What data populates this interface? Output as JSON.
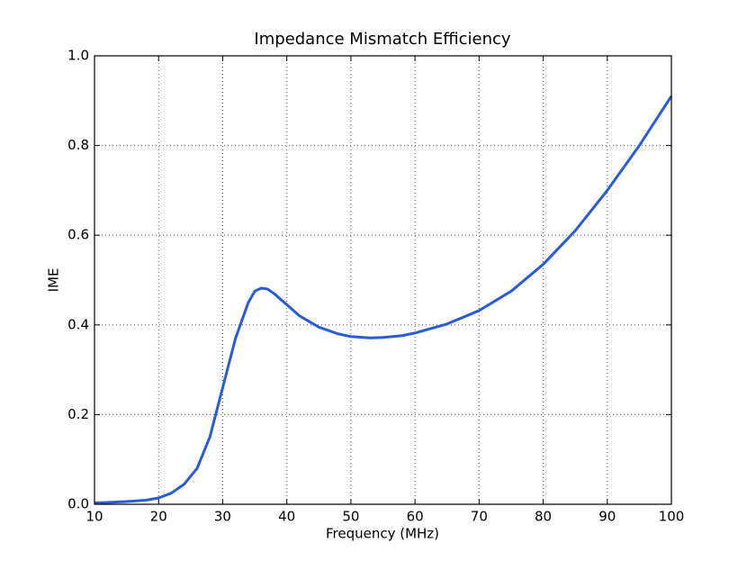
{
  "chart_data": {
    "type": "line",
    "title": "Impedance Mismatch Efficiency",
    "x_label": "Frequency (MHz)",
    "y_label": "IME",
    "x": [
      10,
      12,
      15,
      18,
      20,
      22,
      24,
      26,
      28,
      30,
      32,
      34,
      35,
      36,
      37,
      38,
      40,
      42,
      45,
      48,
      50,
      53,
      55,
      58,
      60,
      65,
      70,
      75,
      80,
      85,
      90,
      95,
      100
    ],
    "values": [
      0.003,
      0.004,
      0.006,
      0.009,
      0.014,
      0.025,
      0.045,
      0.08,
      0.15,
      0.26,
      0.37,
      0.45,
      0.475,
      0.482,
      0.48,
      0.47,
      0.445,
      0.42,
      0.395,
      0.38,
      0.374,
      0.371,
      0.372,
      0.376,
      0.382,
      0.402,
      0.432,
      0.475,
      0.535,
      0.61,
      0.7,
      0.8,
      0.91
    ],
    "color": "#2a5bd7",
    "xlim": [
      10,
      100
    ],
    "xticks": [
      10,
      20,
      30,
      40,
      50,
      60,
      70,
      80,
      90,
      100
    ],
    "ylim": [
      0,
      1
    ],
    "yticks": [
      {
        "value": 0,
        "label": "0.0"
      },
      0.2,
      0.4,
      0.6,
      0.8,
      {
        "value": 1,
        "label": "1.0"
      }
    ],
    "grid": true
  }
}
